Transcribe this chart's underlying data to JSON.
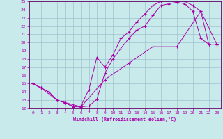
{
  "title": "",
  "xlabel": "Windchill (Refroidissement éolien,°C)",
  "ylabel": "",
  "xlim": [
    -0.5,
    23.5
  ],
  "ylim": [
    12,
    25
  ],
  "xticks": [
    0,
    1,
    2,
    3,
    4,
    5,
    6,
    7,
    8,
    9,
    10,
    11,
    12,
    13,
    14,
    15,
    16,
    17,
    18,
    19,
    20,
    21,
    22,
    23
  ],
  "yticks": [
    12,
    13,
    14,
    15,
    16,
    17,
    18,
    19,
    20,
    21,
    22,
    23,
    24,
    25
  ],
  "bg_color": "#c8eaea",
  "line_color": "#aa00aa",
  "grid_color": "#99b8cc",
  "line1_x": [
    0,
    1,
    2,
    3,
    4,
    5,
    6,
    7,
    8,
    9,
    10,
    11,
    12,
    13,
    14,
    15,
    16,
    17,
    18,
    19,
    20,
    21,
    22,
    23
  ],
  "line1_y": [
    15.0,
    14.5,
    14.0,
    13.0,
    12.7,
    12.2,
    12.2,
    12.3,
    13.1,
    16.3,
    18.0,
    19.3,
    20.5,
    21.5,
    22.0,
    23.3,
    24.5,
    24.7,
    24.9,
    24.7,
    23.8,
    20.5,
    19.8,
    19.8
  ],
  "line2_x": [
    0,
    1,
    2,
    3,
    4,
    5,
    6,
    7,
    8,
    9,
    10,
    11,
    12,
    13,
    14,
    15,
    16,
    17,
    18,
    19,
    20,
    21,
    22,
    23
  ],
  "line2_y": [
    15.0,
    14.5,
    14.0,
    13.0,
    12.7,
    12.3,
    12.3,
    14.3,
    18.2,
    17.0,
    18.5,
    20.5,
    21.3,
    22.5,
    23.5,
    24.5,
    25.0,
    25.2,
    25.3,
    25.0,
    24.5,
    23.8,
    19.8,
    19.8
  ],
  "line3_x": [
    0,
    1,
    3,
    6,
    9,
    12,
    15,
    18,
    21,
    23
  ],
  "line3_y": [
    15.0,
    14.5,
    13.0,
    12.2,
    15.5,
    17.5,
    19.5,
    19.5,
    23.8,
    19.8
  ]
}
